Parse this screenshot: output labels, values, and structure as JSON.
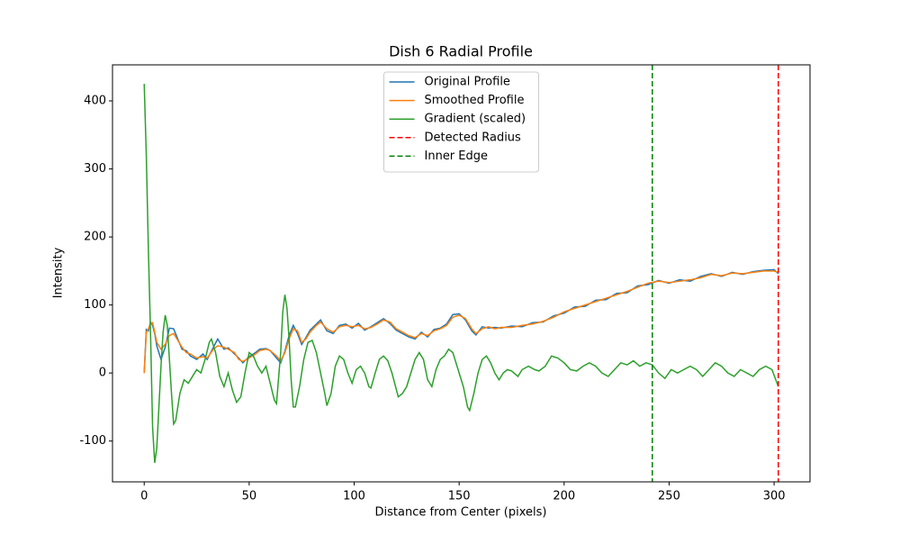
{
  "chart_data": {
    "type": "line",
    "title": "Dish 6 Radial Profile",
    "x_label": "Distance from Center (pixels)",
    "y_label": "Intensity",
    "xlim": [
      -15.1,
      317.1
    ],
    "ylim": [
      -160,
      453
    ],
    "xticks": [
      0,
      50,
      100,
      150,
      200,
      250,
      300
    ],
    "yticks": [
      -100,
      0,
      100,
      200,
      300,
      400
    ],
    "legend": "upper center",
    "series": [
      {
        "name": "Original Profile",
        "color": "#1f77b4",
        "x": [
          0,
          1,
          2,
          3,
          4,
          5,
          6,
          8,
          10,
          12,
          14,
          16,
          18,
          20,
          22,
          25,
          28,
          30,
          33,
          35,
          38,
          40,
          43,
          45,
          47,
          50,
          53,
          55,
          58,
          60,
          63,
          65,
          67,
          69,
          71,
          73,
          75,
          77,
          79,
          82,
          84,
          87,
          90,
          93,
          96,
          99,
          102,
          105,
          108,
          111,
          114,
          117,
          120,
          123,
          126,
          129,
          132,
          135,
          138,
          141,
          144,
          147,
          150,
          153,
          156,
          158,
          161,
          164,
          167,
          170,
          175,
          180,
          185,
          190,
          195,
          200,
          205,
          210,
          215,
          220,
          225,
          230,
          235,
          240,
          245,
          250,
          255,
          260,
          265,
          270,
          275,
          280,
          285,
          290,
          295,
          300,
          302
        ],
        "values": [
          0,
          64,
          62,
          75,
          70,
          58,
          40,
          20,
          38,
          66,
          65,
          50,
          35,
          33,
          25,
          20,
          28,
          20,
          38,
          50,
          35,
          37,
          28,
          22,
          15,
          24,
          30,
          35,
          36,
          33,
          22,
          15,
          32,
          55,
          70,
          58,
          42,
          52,
          63,
          72,
          78,
          62,
          58,
          70,
          72,
          66,
          73,
          63,
          68,
          74,
          80,
          73,
          63,
          58,
          53,
          50,
          60,
          53,
          64,
          66,
          72,
          86,
          87,
          78,
          62,
          56,
          68,
          66,
          67,
          66,
          69,
          68,
          74,
          75,
          84,
          88,
          97,
          98,
          107,
          108,
          117,
          118,
          128,
          130,
          136,
          132,
          137,
          135,
          142,
          146,
          142,
          148,
          145,
          149,
          151,
          152,
          146
        ]
      },
      {
        "name": "Smoothed Profile",
        "color": "#ff7f0e",
        "x": [
          0,
          1,
          2,
          3,
          4,
          5,
          6,
          8,
          10,
          12,
          14,
          16,
          18,
          20,
          22,
          25,
          28,
          30,
          33,
          35,
          38,
          40,
          43,
          45,
          47,
          50,
          53,
          55,
          58,
          60,
          63,
          65,
          67,
          69,
          71,
          73,
          75,
          77,
          79,
          82,
          84,
          87,
          90,
          93,
          96,
          99,
          102,
          105,
          108,
          111,
          114,
          117,
          120,
          123,
          126,
          129,
          132,
          135,
          138,
          141,
          144,
          147,
          150,
          153,
          156,
          158,
          161,
          164,
          167,
          170,
          175,
          180,
          185,
          190,
          195,
          200,
          205,
          210,
          215,
          220,
          225,
          230,
          235,
          240,
          245,
          250,
          255,
          260,
          265,
          270,
          275,
          280,
          285,
          290,
          295,
          300,
          302
        ],
        "values": [
          0,
          60,
          65,
          72,
          74,
          60,
          45,
          35,
          42,
          55,
          58,
          48,
          38,
          30,
          28,
          22,
          24,
          22,
          35,
          40,
          38,
          35,
          30,
          20,
          17,
          22,
          28,
          33,
          35,
          33,
          25,
          18,
          30,
          50,
          65,
          62,
          45,
          50,
          60,
          70,
          75,
          65,
          60,
          68,
          70,
          68,
          70,
          65,
          67,
          72,
          78,
          75,
          65,
          60,
          55,
          52,
          58,
          55,
          62,
          65,
          70,
          82,
          85,
          80,
          65,
          58,
          65,
          68,
          65,
          67,
          67,
          70,
          72,
          76,
          82,
          90,
          95,
          100,
          105,
          110,
          115,
          120,
          126,
          132,
          135,
          133,
          135,
          137,
          140,
          145,
          143,
          147,
          146,
          148,
          150,
          150,
          148
        ]
      },
      {
        "name": "Gradient (scaled)",
        "color": "#2ca02c",
        "x": [
          0,
          1,
          2,
          3,
          4,
          5,
          6,
          7,
          8,
          9,
          10,
          11,
          12,
          13,
          14,
          15,
          17,
          19,
          21,
          23,
          25,
          27,
          29,
          31,
          32,
          34,
          36,
          38,
          40,
          42,
          44,
          46,
          48,
          50,
          52,
          54,
          56,
          58,
          60,
          62,
          63,
          65,
          66,
          67,
          68,
          69,
          70,
          71,
          72,
          74,
          76,
          78,
          80,
          82,
          84,
          86,
          87,
          89,
          91,
          93,
          95,
          97,
          99,
          101,
          103,
          105,
          107,
          108,
          110,
          112,
          114,
          116,
          118,
          121,
          123,
          125,
          127,
          129,
          131,
          133,
          135,
          137,
          139,
          141,
          143,
          145,
          147,
          149,
          152,
          154,
          155,
          157,
          159,
          161,
          163,
          165,
          167,
          169,
          171,
          173,
          175,
          178,
          180,
          183,
          186,
          188,
          191,
          194,
          197,
          200,
          203,
          206,
          209,
          212,
          215,
          218,
          221,
          224,
          227,
          230,
          233,
          236,
          239,
          242,
          245,
          248,
          251,
          254,
          257,
          260,
          263,
          266,
          269,
          272,
          275,
          278,
          281,
          284,
          287,
          290,
          293,
          296,
          299,
          302
        ],
        "values": [
          425,
          320,
          180,
          60,
          -80,
          -132,
          -110,
          -50,
          10,
          60,
          85,
          70,
          20,
          -30,
          -75,
          -70,
          -30,
          -10,
          -15,
          -5,
          5,
          0,
          20,
          45,
          50,
          30,
          -5,
          -20,
          0,
          -25,
          -43,
          -35,
          0,
          30,
          25,
          10,
          0,
          10,
          -15,
          -40,
          -45,
          30,
          90,
          115,
          95,
          50,
          -10,
          -50,
          -50,
          -20,
          20,
          45,
          48,
          30,
          0,
          -30,
          -48,
          -30,
          10,
          25,
          20,
          0,
          -15,
          5,
          10,
          0,
          -20,
          -22,
          0,
          20,
          25,
          18,
          0,
          -35,
          -30,
          -20,
          0,
          20,
          30,
          20,
          -10,
          -20,
          5,
          20,
          25,
          35,
          30,
          10,
          -20,
          -50,
          -55,
          -30,
          0,
          20,
          25,
          15,
          0,
          -10,
          0,
          5,
          3,
          -5,
          5,
          10,
          5,
          3,
          10,
          25,
          22,
          15,
          5,
          3,
          10,
          15,
          10,
          0,
          -5,
          5,
          15,
          12,
          18,
          10,
          15,
          12,
          0,
          -8,
          5,
          0,
          5,
          10,
          5,
          -5,
          5,
          15,
          10,
          0,
          -5,
          5,
          0,
          -5,
          5,
          10,
          5,
          -20
        ]
      }
    ],
    "vlines": [
      {
        "name": "Detected Radius",
        "x": 302,
        "color": "red",
        "style": "dashed"
      },
      {
        "name": "Inner Edge",
        "x": 242,
        "color": "green",
        "style": "dashed"
      }
    ]
  }
}
